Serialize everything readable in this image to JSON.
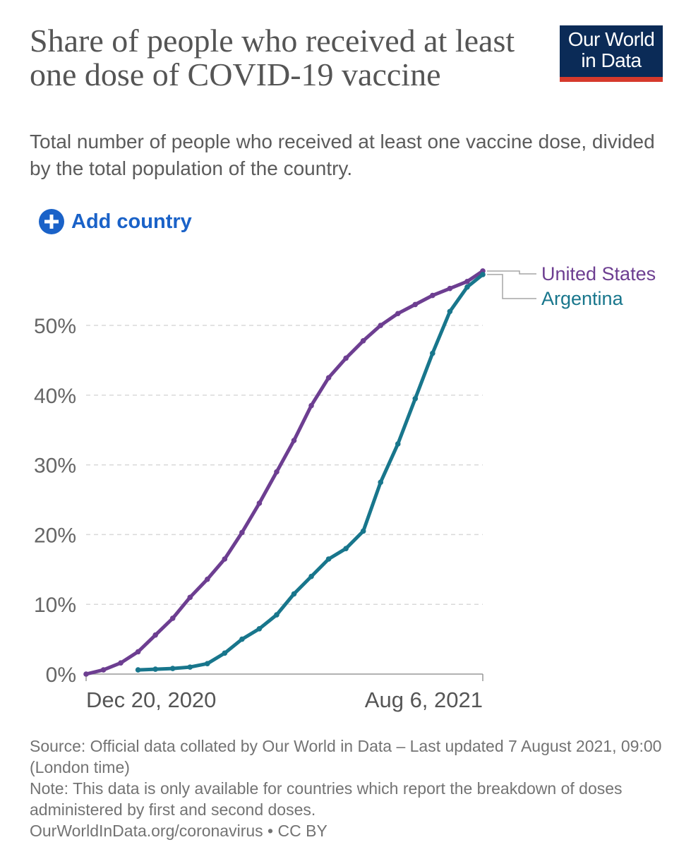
{
  "header": {
    "title": "Share of people who received at least one dose of COVID-19 vaccine",
    "subtitle": "Total number of people who received at least one vaccine dose, divided by the total population of the country."
  },
  "logo": {
    "line1": "Our World",
    "line2": "in Data"
  },
  "controls": {
    "add_country_label": "Add country",
    "icon": "plus-circle-icon"
  },
  "colors": {
    "united_states": "#6d3e91",
    "argentina": "#18768c",
    "add_button": "#1a62c8",
    "logo_bg": "#0b2b57",
    "logo_stripe": "#d63a2c"
  },
  "chart_data": {
    "type": "line",
    "title": "Share of people who received at least one dose of COVID-19 vaccine",
    "xlabel": "",
    "ylabel": "",
    "x_range": [
      "Dec 20, 2020",
      "Aug 6, 2021"
    ],
    "x_tick_labels": [
      "Dec 20, 2020",
      "Aug 6, 2021"
    ],
    "x_unit": "days since Dec 20, 2020",
    "ylim": [
      0,
      58
    ],
    "y_ticks": [
      0,
      10,
      20,
      30,
      40,
      50
    ],
    "y_tick_labels": [
      "0%",
      "10%",
      "20%",
      "30%",
      "40%",
      "50%"
    ],
    "grid": true,
    "legend": "right, at line ends",
    "series": [
      {
        "name": "United States",
        "color": "#6d3e91",
        "x": [
          0,
          10,
          20,
          30,
          40,
          50,
          60,
          70,
          80,
          90,
          100,
          110,
          120,
          130,
          140,
          150,
          160,
          170,
          180,
          190,
          200,
          210,
          220,
          229
        ],
        "values": [
          0,
          0.6,
          1.6,
          3.2,
          5.6,
          8.0,
          11.0,
          13.6,
          16.5,
          20.3,
          24.5,
          29.0,
          33.5,
          38.5,
          42.5,
          45.3,
          47.8,
          50.0,
          51.7,
          53.0,
          54.3,
          55.3,
          56.3,
          57.8
        ]
      },
      {
        "name": "Argentina",
        "color": "#18768c",
        "x": [
          30,
          40,
          50,
          60,
          70,
          80,
          90,
          100,
          110,
          120,
          130,
          140,
          150,
          160,
          170,
          180,
          190,
          200,
          210,
          220,
          229
        ],
        "values": [
          0.6,
          0.7,
          0.8,
          1.0,
          1.5,
          3.0,
          5.0,
          6.5,
          8.5,
          11.5,
          14.0,
          16.5,
          18.0,
          20.5,
          27.5,
          33.0,
          39.5,
          46.0,
          52.0,
          55.5,
          57.3
        ]
      }
    ]
  },
  "footer": {
    "source": "Source: Official data collated by Our World in Data – Last updated 7 August 2021, 09:00 (London time)",
    "note": "Note: This data is only available for countries which report the breakdown of doses administered by first and second doses.",
    "link": "OurWorldInData.org/coronavirus • CC BY"
  }
}
